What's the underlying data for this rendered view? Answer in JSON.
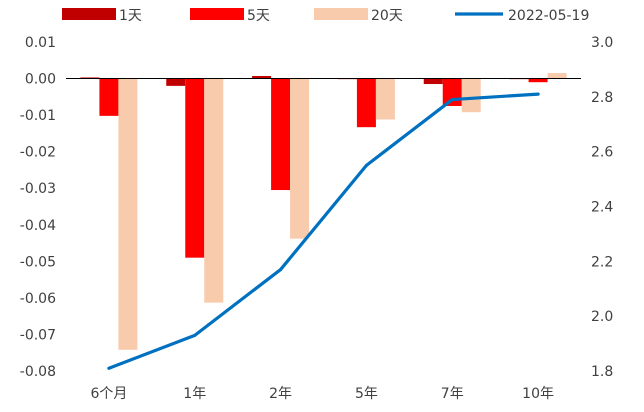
{
  "chart_data": {
    "type": "bar",
    "categories": [
      "6个月",
      "1年",
      "2年",
      "5年",
      "7年",
      "10年"
    ],
    "series": [
      {
        "name": "1天",
        "axis": "left",
        "type": "bar",
        "color": "#c00000",
        "values": [
          0.0003,
          -0.002,
          0.0007,
          0.0,
          -0.0015,
          0.0
        ]
      },
      {
        "name": "5天",
        "axis": "left",
        "type": "bar",
        "color": "#ff0000",
        "values": [
          -0.0102,
          -0.049,
          -0.0305,
          -0.0133,
          -0.0075,
          -0.001
        ]
      },
      {
        "name": "20天",
        "axis": "left",
        "type": "bar",
        "color": "#f8cbad",
        "values": [
          -0.0742,
          -0.0613,
          -0.0438,
          -0.0112,
          -0.0092,
          0.0015
        ]
      },
      {
        "name": "2022-05-19",
        "axis": "right",
        "type": "line",
        "color": "#0070c0",
        "values": [
          1.81,
          1.93,
          2.17,
          2.55,
          2.79,
          2.81
        ]
      }
    ],
    "y_left": {
      "min": -0.08,
      "max": 0.01,
      "ticks": [
        "0.01",
        "0.00",
        "-0.01",
        "-0.02",
        "-0.03",
        "-0.04",
        "-0.05",
        "-0.06",
        "-0.07",
        "-0.08"
      ]
    },
    "y_right": {
      "min": 1.8,
      "max": 3.0,
      "ticks": [
        "3.0",
        "2.8",
        "2.6",
        "2.4",
        "2.2",
        "2.0",
        "1.8"
      ]
    },
    "legend_position": "top",
    "grid": false
  }
}
